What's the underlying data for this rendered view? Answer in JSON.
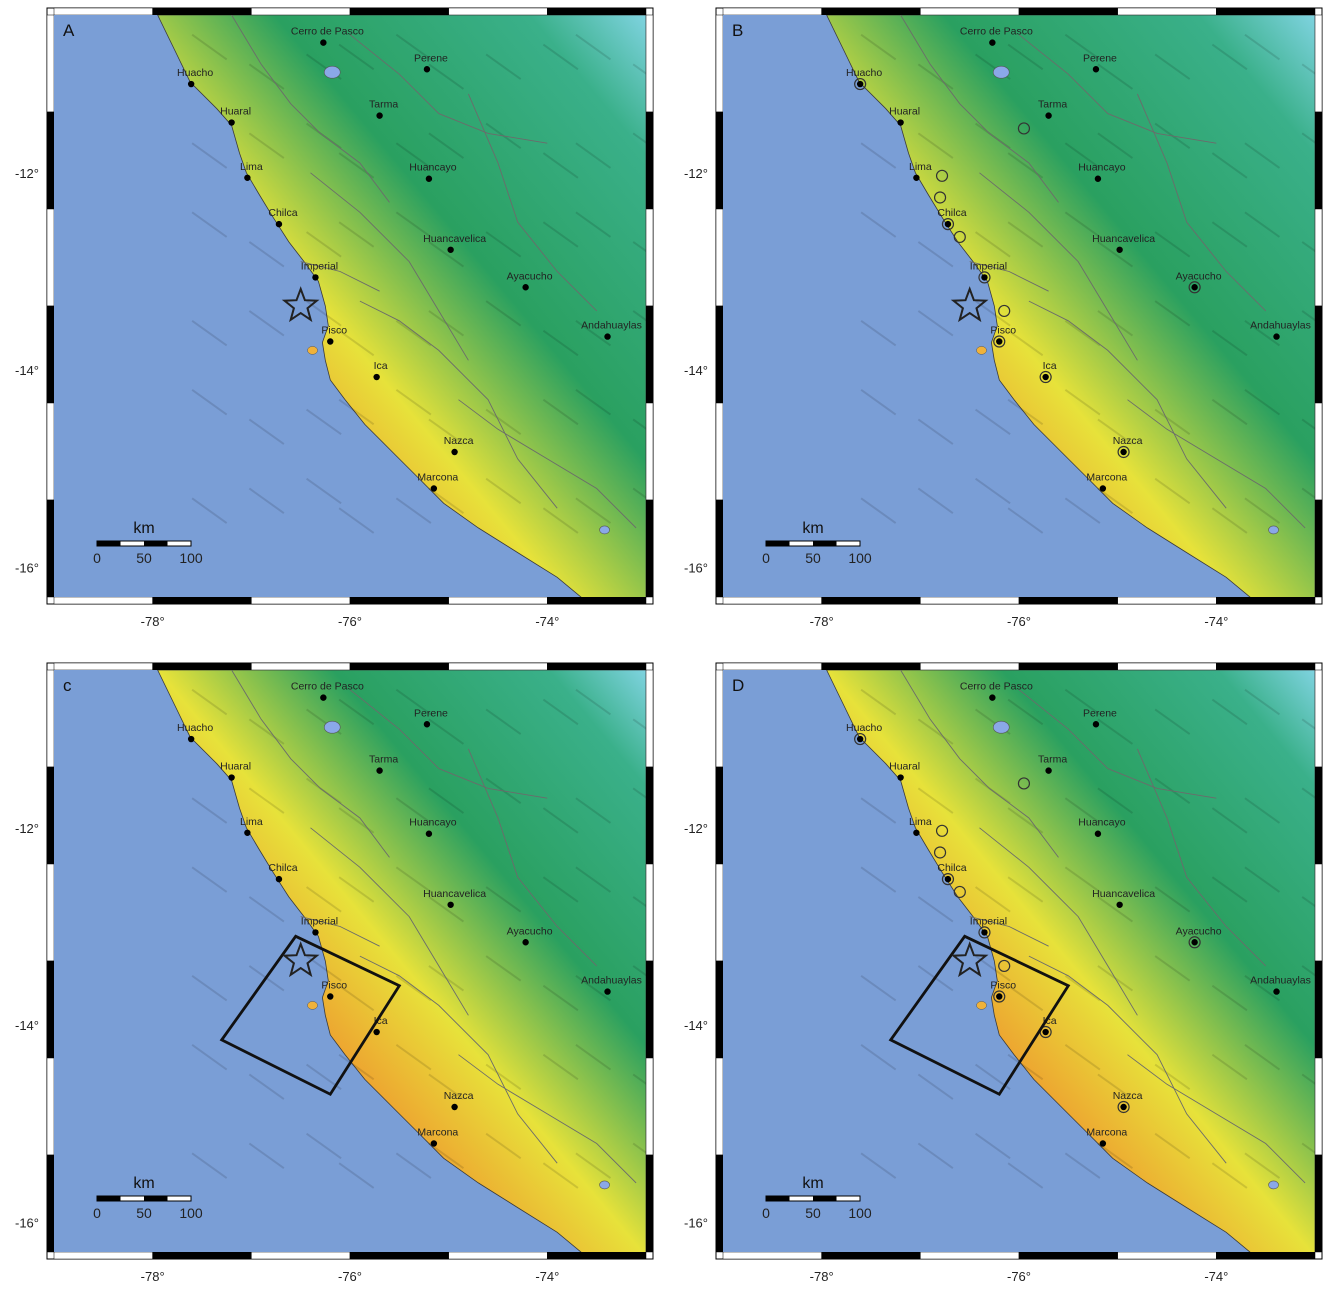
{
  "panels": [
    {
      "id": "a",
      "label": "A",
      "circles": false,
      "box": false
    },
    {
      "id": "b",
      "label": "B",
      "circles": true,
      "box": false
    },
    {
      "id": "c",
      "label": "c",
      "circles": false,
      "box": true
    },
    {
      "id": "d",
      "label": "D",
      "circles": true,
      "box": true
    }
  ],
  "lat_ticks": [
    "-12°",
    "-14°",
    "-16°"
  ],
  "lon_ticks": [
    "-78°",
    "-76°",
    "-74°"
  ],
  "cities": [
    {
      "name": "Cerro de Pasco",
      "lon": -76.27,
      "lat": -10.68
    },
    {
      "name": "Huacho",
      "lon": -77.61,
      "lat": -11.1
    },
    {
      "name": "Perene",
      "lon": -75.22,
      "lat": -10.95
    },
    {
      "name": "Huaral",
      "lon": -77.2,
      "lat": -11.49
    },
    {
      "name": "Tarma",
      "lon": -75.7,
      "lat": -11.42
    },
    {
      "name": "Lima",
      "lon": -77.04,
      "lat": -12.05
    },
    {
      "name": "Huancayo",
      "lon": -75.2,
      "lat": -12.06
    },
    {
      "name": "Chilca",
      "lon": -76.72,
      "lat": -12.52
    },
    {
      "name": "Huancavelica",
      "lon": -74.98,
      "lat": -12.78
    },
    {
      "name": "Imperial",
      "lon": -76.35,
      "lat": -13.06
    },
    {
      "name": "Ayacucho",
      "lon": -74.22,
      "lat": -13.16
    },
    {
      "name": "Andahuaylas",
      "lon": -73.39,
      "lat": -13.66
    },
    {
      "name": "Pisco",
      "lon": -76.2,
      "lat": -13.71
    },
    {
      "name": "Ica",
      "lon": -75.73,
      "lat": -14.07
    },
    {
      "name": "Nazca",
      "lon": -74.94,
      "lat": -14.83
    },
    {
      "name": "Marcona",
      "lon": -75.15,
      "lat": -15.2
    }
  ],
  "scale_bar": {
    "unit": "km",
    "ticks": [
      "0",
      "50",
      "100"
    ]
  },
  "colors": {
    "ocean": "#7a9ed6",
    "lowland": "#2aa060",
    "midland": "#e7e23a",
    "intense": "#f08a2c",
    "highland": "#7fd3e0",
    "lake": "#8aa8e8"
  }
}
